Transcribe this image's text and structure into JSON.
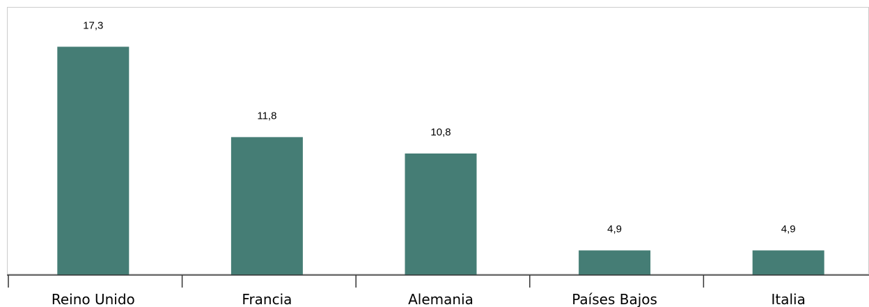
{
  "chart_data": {
    "type": "bar",
    "categories": [
      "Reino Unido",
      "Francia",
      "Alemania",
      "Países Bajos",
      "Italia"
    ],
    "values": [
      17.3,
      11.8,
      10.8,
      4.9,
      4.9
    ],
    "value_labels": [
      "17,3",
      "11,8",
      "10,8",
      "4,9",
      "4,9"
    ],
    "title": "",
    "xlabel": "",
    "ylabel": "",
    "ylim": [
      3.4,
      19.3
    ],
    "grid": false,
    "legend": "none",
    "bar_color": "#457d75",
    "frame_color": "#cccccc",
    "axis_color": "#333333"
  }
}
